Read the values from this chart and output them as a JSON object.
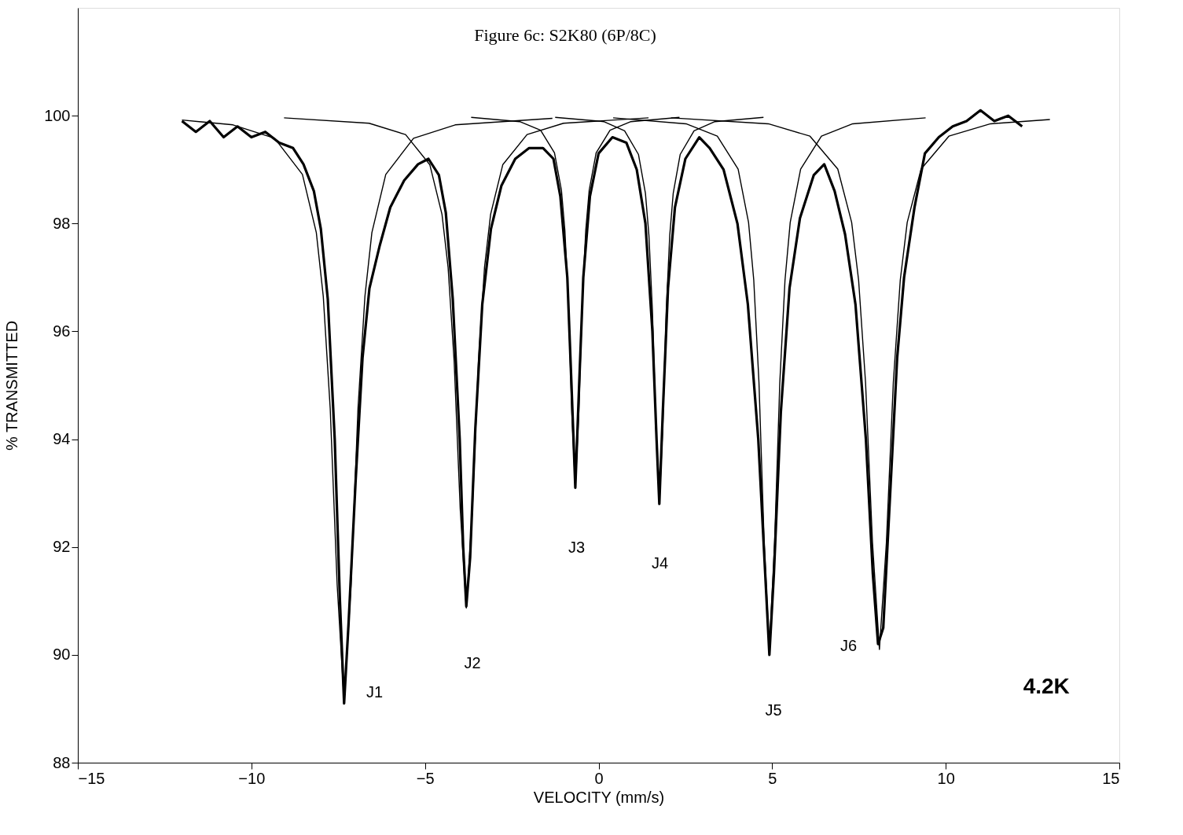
{
  "chart_data": {
    "type": "line",
    "title": "Figure 6c:  S2K80 (6P/8C)",
    "xlabel": "VELOCITY (mm/s)",
    "ylabel": "% TRANSMITTED",
    "xlim": [
      -15,
      15
    ],
    "xticks": [
      -15,
      -10,
      -5,
      0,
      5,
      10,
      15
    ],
    "ylim": [
      88,
      102
    ],
    "yticks": [
      88,
      90,
      92,
      94,
      96,
      98,
      100
    ],
    "grid": false,
    "marker": "none",
    "line_style": "solid",
    "series": [
      {
        "color": "#000000",
        "x": [
          -12.0,
          -11.6,
          -11.2,
          -10.8,
          -10.4,
          -10.0,
          -9.6,
          -9.2,
          -8.8,
          -8.5,
          -8.2,
          -8.0,
          -7.8,
          -7.6,
          -7.45,
          -7.33,
          -7.2,
          -7.0,
          -6.8,
          -6.6,
          -6.3,
          -6.0,
          -5.6,
          -5.2,
          -4.9,
          -4.6,
          -4.4,
          -4.2,
          -4.0,
          -3.9,
          -3.81,
          -3.7,
          -3.55,
          -3.35,
          -3.1,
          -2.8,
          -2.4,
          -2.0,
          -1.6,
          -1.3,
          -1.1,
          -0.9,
          -0.78,
          -0.67,
          -0.56,
          -0.44,
          -0.25,
          0.0,
          0.4,
          0.8,
          1.1,
          1.35,
          1.55,
          1.67,
          1.75,
          1.85,
          2.0,
          2.2,
          2.5,
          2.9,
          3.2,
          3.6,
          4.0,
          4.3,
          4.6,
          4.8,
          4.92,
          5.05,
          5.25,
          5.5,
          5.8,
          6.2,
          6.5,
          6.8,
          7.1,
          7.4,
          7.7,
          7.9,
          8.05,
          8.2,
          8.4,
          8.6,
          8.8,
          9.1,
          9.4,
          9.8,
          10.2,
          10.6,
          11.0,
          11.4,
          11.8,
          12.2
        ],
        "values": [
          99.9,
          99.7,
          99.9,
          99.6,
          99.8,
          99.6,
          99.7,
          99.5,
          99.4,
          99.1,
          98.6,
          97.9,
          96.6,
          94.0,
          91.0,
          89.1,
          90.6,
          93.2,
          95.5,
          96.8,
          97.6,
          98.3,
          98.8,
          99.1,
          99.2,
          98.9,
          98.2,
          96.6,
          94.0,
          92.0,
          90.9,
          91.8,
          94.2,
          96.5,
          97.9,
          98.7,
          99.2,
          99.4,
          99.4,
          99.2,
          98.5,
          97.0,
          95.0,
          93.1,
          95.0,
          97.0,
          98.5,
          99.3,
          99.6,
          99.5,
          99.0,
          98.0,
          96.0,
          94.0,
          92.8,
          94.5,
          96.8,
          98.3,
          99.2,
          99.6,
          99.4,
          99.0,
          98.0,
          96.5,
          94.0,
          91.5,
          90.0,
          91.5,
          94.5,
          96.8,
          98.1,
          98.9,
          99.1,
          98.6,
          97.8,
          96.5,
          94.0,
          91.5,
          90.2,
          90.5,
          93.0,
          95.5,
          97.0,
          98.3,
          99.3,
          99.6,
          99.8,
          99.9,
          100.1,
          99.9,
          100.0,
          99.8
        ]
      },
      {
        "color": "#000000",
        "x": [
          -12.0,
          -10.53,
          -9.33,
          -8.53,
          -8.13,
          -7.93,
          -7.73,
          -7.53,
          -7.33,
          -7.13,
          -6.93,
          -6.73,
          -6.53,
          -6.13,
          -5.33,
          -4.13,
          -1.33
        ],
        "values": [
          99.92,
          99.83,
          99.58,
          98.91,
          97.83,
          96.65,
          94.57,
          91.3,
          89.13,
          91.3,
          94.57,
          96.65,
          97.83,
          98.91,
          99.58,
          99.83,
          99.95
        ]
      },
      {
        "color": "#000000",
        "x": [
          -9.06,
          -6.61,
          -5.56,
          -4.86,
          -4.51,
          -4.335,
          -4.16,
          -3.985,
          -3.81,
          -3.635,
          -3.46,
          -3.285,
          -3.11,
          -2.76,
          -2.06,
          -1.01,
          1.44
        ],
        "values": [
          99.96,
          99.86,
          99.65,
          99.09,
          98.17,
          97.19,
          95.44,
          92.7,
          90.87,
          92.7,
          95.44,
          97.19,
          98.17,
          99.09,
          99.65,
          99.86,
          99.96
        ]
      },
      {
        "color": "#000000",
        "x": [
          -3.67,
          -2.27,
          -1.67,
          -1.27,
          -1.07,
          -0.97,
          -0.87,
          -0.77,
          -0.67,
          -0.57,
          -0.47,
          -0.37,
          -0.27,
          -0.07,
          0.33,
          0.93,
          2.33
        ],
        "values": [
          99.97,
          99.89,
          99.73,
          99.31,
          98.62,
          97.87,
          96.55,
          94.48,
          93.1,
          94.48,
          96.55,
          97.87,
          98.62,
          99.31,
          99.73,
          99.89,
          99.97
        ]
      },
      {
        "color": "#000000",
        "x": [
          -1.25,
          0.15,
          0.75,
          1.15,
          1.35,
          1.45,
          1.55,
          1.65,
          1.75,
          1.85,
          1.95,
          2.05,
          2.15,
          2.35,
          2.75,
          3.35,
          4.75
        ],
        "values": [
          99.97,
          99.89,
          99.72,
          99.28,
          98.56,
          97.78,
          96.4,
          94.24,
          92.8,
          94.24,
          96.4,
          97.78,
          98.56,
          99.28,
          99.72,
          99.89,
          99.97
        ]
      },
      {
        "color": "#000000",
        "x": [
          0.42,
          2.52,
          3.42,
          4.02,
          4.32,
          4.47,
          4.62,
          4.77,
          4.92,
          5.07,
          5.22,
          5.37,
          5.52,
          5.82,
          6.42,
          7.32,
          9.42
        ],
        "values": [
          99.96,
          99.85,
          99.62,
          99.01,
          98.02,
          96.95,
          95.05,
          92.08,
          90.1,
          92.08,
          95.05,
          96.95,
          98.02,
          99.01,
          99.62,
          99.85,
          99.96
        ]
      },
      {
        "color": "#000000",
        "x": [
          2.09,
          4.89,
          6.09,
          6.89,
          7.29,
          7.49,
          7.69,
          7.89,
          8.09,
          8.29,
          8.49,
          8.69,
          8.89,
          9.29,
          10.09,
          11.29,
          13.0
        ],
        "values": [
          99.96,
          99.85,
          99.62,
          99.01,
          98.02,
          96.95,
          95.05,
          92.08,
          90.1,
          92.08,
          95.05,
          96.95,
          98.02,
          99.01,
          99.62,
          99.85,
          99.93
        ]
      }
    ],
    "annotations": [
      "J1",
      "J2",
      "J3",
      "J4",
      "J5",
      "J6",
      "4.2K"
    ]
  }
}
